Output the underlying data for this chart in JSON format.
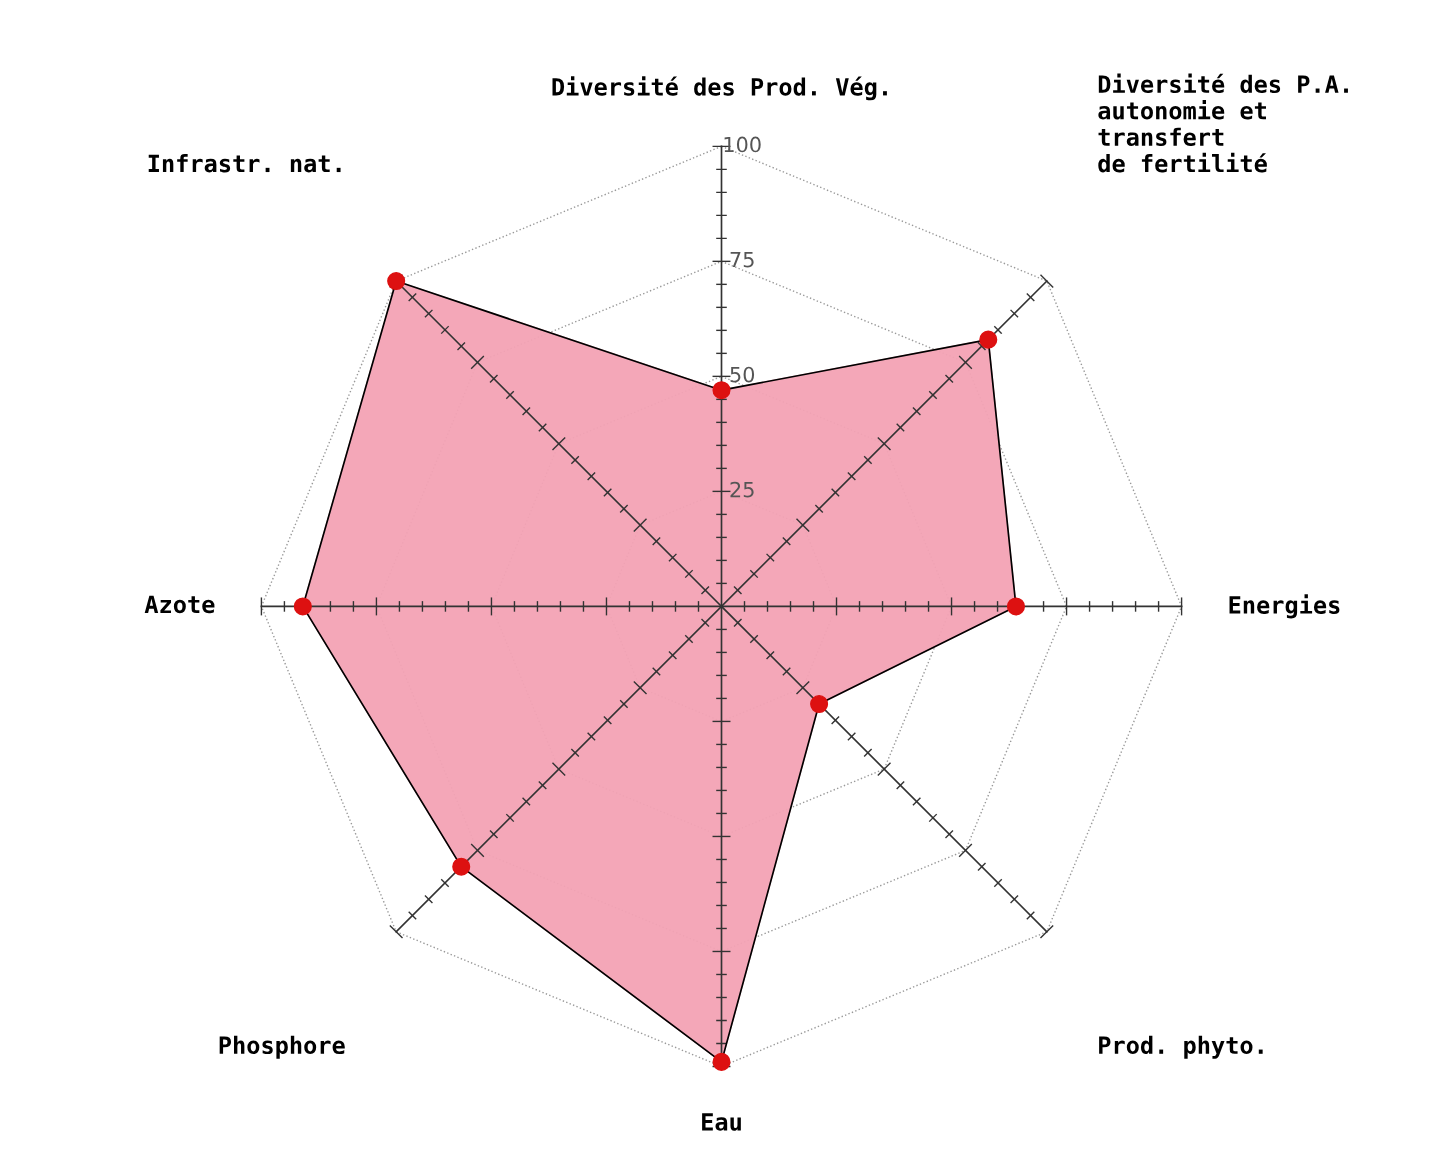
{
  "chart_data": {
    "type": "radar",
    "categories": [
      "Diversité des Prod. Vég.",
      "Diversité des P.A.\nautonomie et\ntransfert\nde fertilité",
      "Energies",
      "Prod. phyto.",
      "Eau",
      "Phosphore",
      "Azote",
      "Infrastr. nat."
    ],
    "series": [
      {
        "color": "#f4a3b5",
        "values": [
          47,
          82,
          64,
          30,
          99,
          80,
          91,
          100
        ]
      }
    ],
    "ylim": [
      0,
      100
    ],
    "yticks": [
      25,
      50,
      75,
      100
    ],
    "grid": true,
    "marker": "circle",
    "line_style": "solid"
  }
}
